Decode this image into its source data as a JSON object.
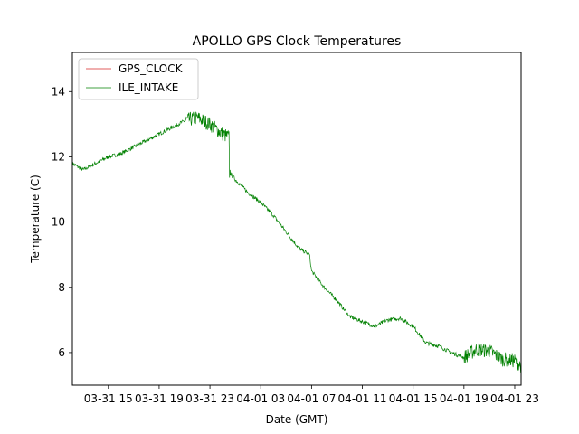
{
  "chart_data": {
    "type": "line",
    "title": "APOLLO GPS Clock Temperatures",
    "xlabel": "Date (GMT)",
    "ylabel": "Temperature (C)",
    "x_unit": "hours",
    "xlim": [
      "03-31 12:10",
      "04-01 23:30"
    ],
    "ylim": [
      5.0,
      15.2
    ],
    "x_ticks": [
      "03-31 15",
      "03-31 19",
      "03-31 23",
      "04-01 03",
      "04-01 07",
      "04-01 11",
      "04-01 15",
      "04-01 19",
      "04-01 23"
    ],
    "y_ticks": [
      6,
      8,
      10,
      12,
      14
    ],
    "grid": false,
    "legend_position": "top-left",
    "series": [
      {
        "name": "GPS_CLOCK",
        "color": "#d62728",
        "x": [],
        "y": []
      },
      {
        "name": "ILE_INTAKE",
        "color": "#008000",
        "x": [
          "03-31 12:10",
          "03-31 13:00",
          "03-31 14:00",
          "03-31 15:00",
          "03-31 16:00",
          "03-31 17:00",
          "03-31 18:00",
          "03-31 19:00",
          "03-31 20:00",
          "03-31 21:00",
          "03-31 22:00",
          "03-31 23:00",
          "04-01 00:00",
          "04-01 00:30",
          "04-01 00:35",
          "04-01 01:00",
          "04-01 02:00",
          "04-01 03:00",
          "04-01 04:00",
          "04-01 05:00",
          "04-01 06:00",
          "04-01 06:50",
          "04-01 07:00",
          "04-01 08:00",
          "04-01 09:00",
          "04-01 10:00",
          "04-01 11:00",
          "04-01 12:00",
          "04-01 13:00",
          "04-01 14:00",
          "04-01 15:00",
          "04-01 16:00",
          "04-01 17:00",
          "04-01 18:00",
          "04-01 19:00",
          "04-01 20:00",
          "04-01 21:00",
          "04-01 22:00",
          "04-01 23:00",
          "04-01 23:30"
        ],
        "y": [
          11.8,
          11.6,
          11.8,
          12.0,
          12.1,
          12.3,
          12.5,
          12.7,
          12.9,
          13.1,
          13.2,
          13.0,
          12.7,
          12.6,
          11.5,
          11.3,
          10.9,
          10.6,
          10.2,
          9.7,
          9.2,
          9.0,
          8.5,
          8.0,
          7.6,
          7.1,
          6.95,
          6.8,
          7.0,
          7.05,
          6.8,
          6.3,
          6.2,
          6.0,
          5.85,
          6.1,
          6.05,
          5.8,
          5.75,
          5.6
        ]
      }
    ]
  }
}
